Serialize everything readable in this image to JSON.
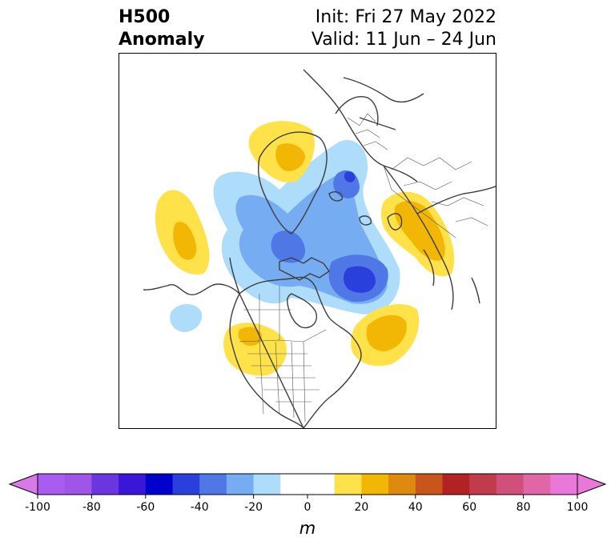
{
  "title": {
    "left_line1": "H500",
    "left_line2": "Anomaly",
    "right_line1": "Init: Fri 27 May 2022",
    "right_line2": "Valid: 11 Jun – 24 Jun"
  },
  "colorbar": {
    "units": "m",
    "ticks": [
      "-100",
      "-80",
      "-60",
      "-40",
      "-20",
      "0",
      "20",
      "40",
      "60",
      "80",
      "100"
    ],
    "tick_values": [
      -100,
      -80,
      -60,
      -40,
      -20,
      0,
      20,
      40,
      60,
      80,
      100
    ],
    "extend": "both",
    "min": -100,
    "max": 100,
    "bins": [
      {
        "from": -100,
        "to": -90,
        "color": "#a95cf0"
      },
      {
        "from": -90,
        "to": -80,
        "color": "#9f55e8"
      },
      {
        "from": -80,
        "to": -70,
        "color": "#6b35e0"
      },
      {
        "from": -70,
        "to": -60,
        "color": "#3a17d6"
      },
      {
        "from": -60,
        "to": -50,
        "color": "#0000cc"
      },
      {
        "from": -50,
        "to": -40,
        "color": "#2a3fdb"
      },
      {
        "from": -40,
        "to": -30,
        "color": "#4f78e6"
      },
      {
        "from": -30,
        "to": -20,
        "color": "#76acf2"
      },
      {
        "from": -20,
        "to": -10,
        "color": "#aedcfb"
      },
      {
        "from": -10,
        "to": 10,
        "color": "#ffffff"
      },
      {
        "from": 10,
        "to": 20,
        "color": "#ffe14a"
      },
      {
        "from": 20,
        "to": 30,
        "color": "#f2b705"
      },
      {
        "from": 30,
        "to": 40,
        "color": "#de8a0f"
      },
      {
        "from": 40,
        "to": 50,
        "color": "#c8561a"
      },
      {
        "from": 50,
        "to": 60,
        "color": "#b22222"
      },
      {
        "from": 60,
        "to": 70,
        "color": "#c23b4d"
      },
      {
        "from": 70,
        "to": 80,
        "color": "#d14f7b"
      },
      {
        "from": 80,
        "to": 90,
        "color": "#e066a6"
      },
      {
        "from": 90,
        "to": 100,
        "color": "#ea78d8"
      }
    ],
    "under_color": "#d77ae8",
    "over_color": "#ea78d8"
  },
  "anomaly_colors": {
    "neg_10": "#aedcfb",
    "neg_20": "#76acf2",
    "neg_30": "#4f78e6",
    "neg_40": "#2a3fdb",
    "pos_10": "#ffe14a",
    "pos_20": "#f2b705"
  }
}
